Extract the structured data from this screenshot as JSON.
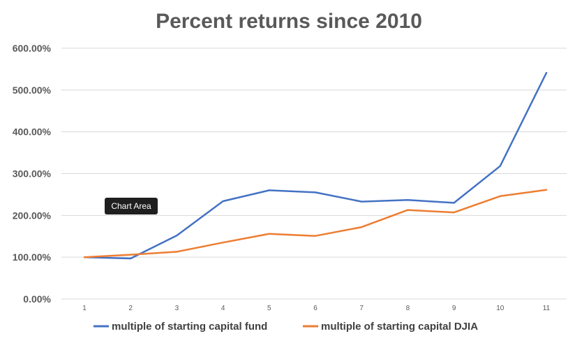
{
  "chart_data": {
    "type": "line",
    "title": "Percent returns since 2010",
    "x": [
      1,
      2,
      3,
      4,
      5,
      6,
      7,
      8,
      9,
      10,
      11
    ],
    "x_tick_labels": [
      "1",
      "2",
      "3",
      "4",
      "5",
      "6",
      "7",
      "8",
      "9",
      "10",
      "11"
    ],
    "ylim": [
      0,
      600
    ],
    "y_ticks": [
      0,
      100,
      200,
      300,
      400,
      500,
      600
    ],
    "y_tick_labels": [
      "0.00%",
      "100.00%",
      "200.00%",
      "300.00%",
      "400.00%",
      "500.00%",
      "600.00%"
    ],
    "grid": true,
    "legend_position": "bottom",
    "series": [
      {
        "name": "multiple of starting capital fund",
        "color": "#4472c4",
        "values": [
          100,
          97,
          152,
          234,
          260,
          255,
          233,
          237,
          230,
          318,
          541
        ]
      },
      {
        "name": "multiple of starting capital DJIA",
        "color": "#ed7d31",
        "values": [
          100,
          106,
          113,
          135,
          156,
          151,
          172,
          213,
          207,
          246,
          261
        ]
      }
    ]
  },
  "tooltip": {
    "label": "Chart Area"
  }
}
